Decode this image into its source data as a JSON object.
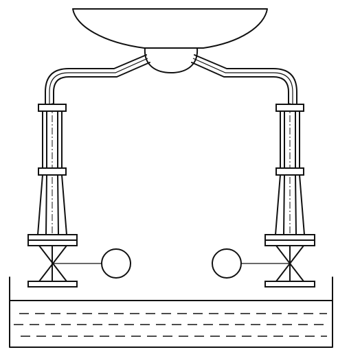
{
  "diagram": {
    "components": [
      {
        "id": "dish",
        "icon": "bowl-shaped-vessel"
      },
      {
        "id": "hub",
        "icon": "half-sphere-junction"
      },
      {
        "id": "left-pipe-branch",
        "icon": "bent-pipe"
      },
      {
        "id": "right-pipe-branch",
        "icon": "bent-pipe"
      },
      {
        "id": "left-valve",
        "icon": "gate-valve"
      },
      {
        "id": "right-valve",
        "icon": "gate-valve"
      },
      {
        "id": "left-float",
        "icon": "circle"
      },
      {
        "id": "right-float",
        "icon": "circle"
      },
      {
        "id": "tank",
        "icon": "open-liquid-tank"
      }
    ],
    "connections": [
      {
        "from": "dish",
        "to": "hub"
      },
      {
        "from": "hub",
        "to": "left-pipe-branch"
      },
      {
        "from": "hub",
        "to": "right-pipe-branch"
      },
      {
        "from": "left-pipe-branch",
        "to": "left-valve"
      },
      {
        "from": "right-pipe-branch",
        "to": "right-valve"
      },
      {
        "from": "left-valve",
        "to": "left-float"
      },
      {
        "from": "right-valve",
        "to": "right-float"
      },
      {
        "from": "left-valve",
        "to": "tank"
      },
      {
        "from": "right-valve",
        "to": "tank"
      }
    ],
    "colors": {
      "stroke": "#111111",
      "background": "#ffffff"
    }
  }
}
